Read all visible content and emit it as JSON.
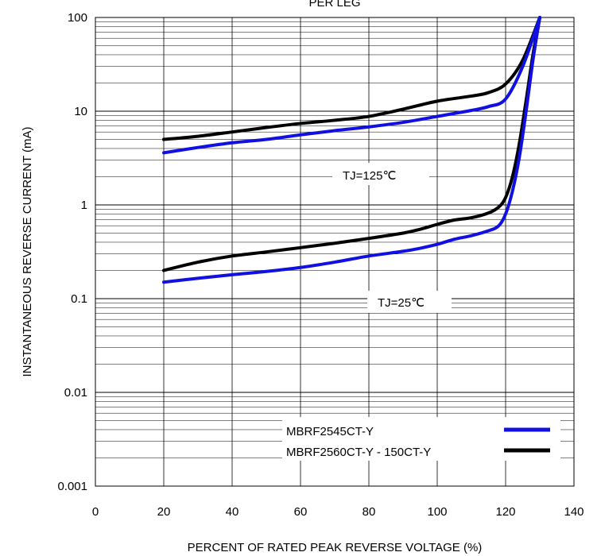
{
  "chart_data": {
    "type": "line",
    "title": "PER LEG",
    "xlabel": "PERCENT OF RATED PEAK REVERSE VOLTAGE (%)",
    "ylabel": "INSTANTANEOUS REVERSE CURRENT (mA)",
    "xlim": [
      0,
      140
    ],
    "ylim": [
      0.001,
      100
    ],
    "yscale": "log",
    "grid": true,
    "xticks": [
      "0",
      "20",
      "40",
      "60",
      "80",
      "100",
      "120",
      "140"
    ],
    "yticks": [
      "0.001",
      "0.01",
      "0.1",
      "1",
      "10",
      "100"
    ],
    "legend_position": "bottom-right",
    "annotations": [
      "TJ=125℃",
      "TJ=25℃"
    ],
    "series": [
      {
        "name": "MBRF2545CT-Y",
        "color": "#1010e0",
        "curves": [
          {
            "condition": "TJ=125℃",
            "x": [
              20,
              30,
              40,
              50,
              60,
              70,
              80,
              90,
              100,
              110,
              115,
              120,
              125,
              130
            ],
            "y": [
              3.6,
              4.1,
              4.6,
              5.0,
              5.6,
              6.2,
              6.8,
              7.6,
              8.8,
              10.2,
              11.2,
              13.5,
              30,
              100
            ]
          },
          {
            "condition": "TJ=25℃",
            "x": [
              20,
              30,
              40,
              50,
              60,
              70,
              80,
              90,
              95,
              100,
              105,
              110,
              115,
              118,
              120,
              122,
              124,
              126,
              128,
              130
            ],
            "y": [
              0.15,
              0.165,
              0.18,
              0.195,
              0.215,
              0.245,
              0.285,
              0.32,
              0.345,
              0.38,
              0.43,
              0.47,
              0.53,
              0.6,
              0.8,
              1.4,
              3.2,
              10,
              35,
              100
            ]
          }
        ]
      },
      {
        "name": "MBRF2560CT-Y - 150CT-Y",
        "color": "#000000",
        "curves": [
          {
            "condition": "TJ=125℃",
            "x": [
              20,
              30,
              40,
              50,
              60,
              70,
              80,
              90,
              100,
              110,
              115,
              120,
              125,
              130
            ],
            "y": [
              5.0,
              5.4,
              6.0,
              6.7,
              7.4,
              8.0,
              8.8,
              10.5,
              12.8,
              14.5,
              15.8,
              19.5,
              35,
              100
            ]
          },
          {
            "condition": "TJ=25℃",
            "x": [
              20,
              30,
              40,
              50,
              60,
              70,
              80,
              90,
              95,
              100,
              105,
              110,
              115,
              118,
              120,
              122,
              124,
              126,
              128,
              130
            ],
            "y": [
              0.2,
              0.245,
              0.285,
              0.315,
              0.35,
              0.39,
              0.44,
              0.5,
              0.55,
              0.62,
              0.69,
              0.73,
              0.82,
              0.95,
              1.2,
              2.0,
              4.5,
              13,
              40,
              100
            ]
          }
        ]
      }
    ]
  }
}
